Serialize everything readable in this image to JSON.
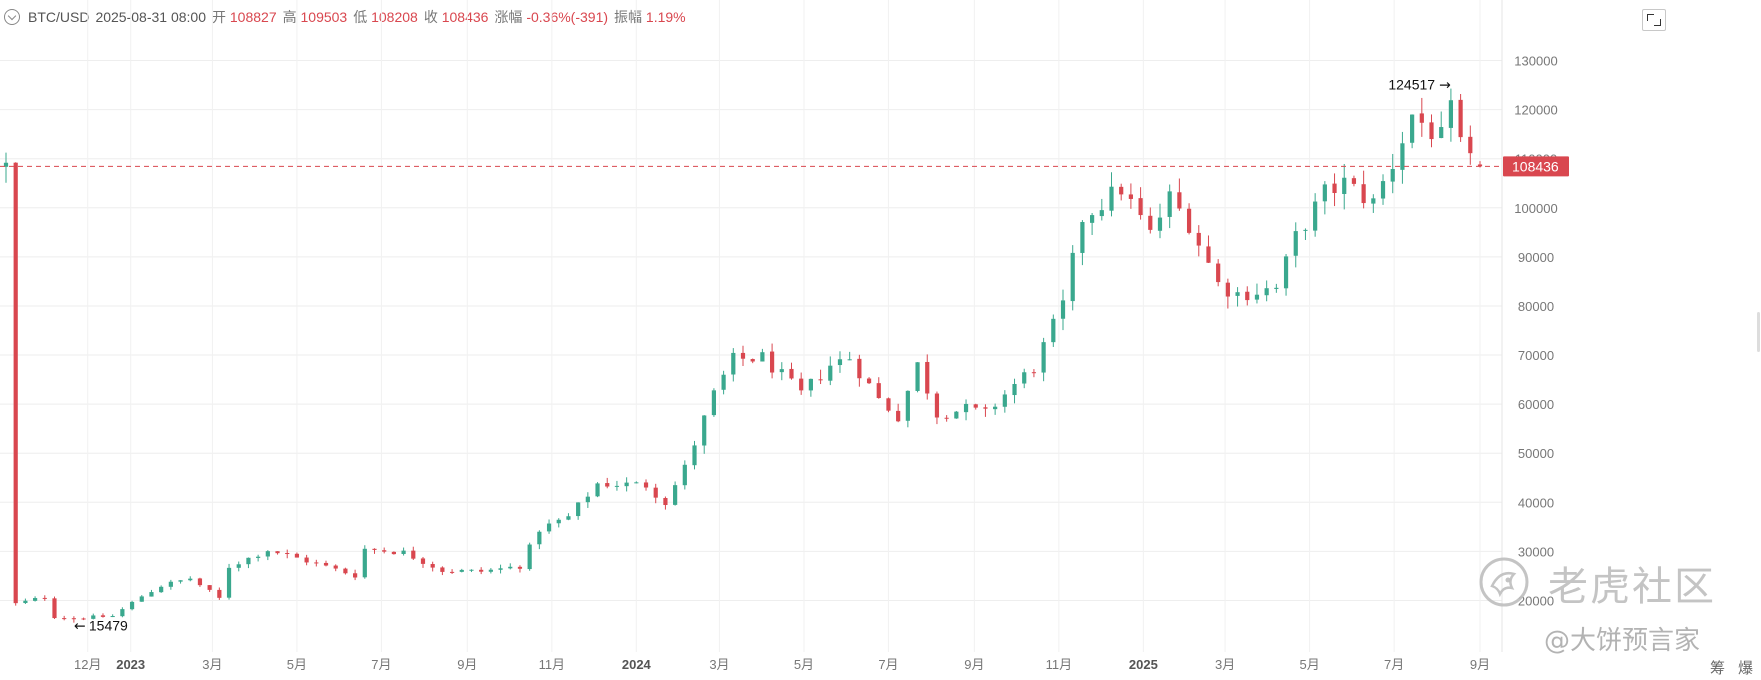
{
  "header": {
    "symbol": "BTC/USD",
    "datetime": "2025-08-31 08:00",
    "open_label": "开",
    "open": "108827",
    "high_label": "高",
    "high": "109503",
    "low_label": "低",
    "low": "108208",
    "close_label": "收",
    "close": "108436",
    "change_label": "涨幅",
    "change": "-0.36%(-391)",
    "amplitude_label": "振幅",
    "amplitude": "1.19%"
  },
  "annotations": {
    "high_marker": "124517",
    "low_marker": "15479",
    "current_price": "108436"
  },
  "bottom_buttons": {
    "chips": "筹",
    "burst": "爆"
  },
  "watermark": {
    "brand": "老虎社区",
    "author": "@大饼预言家"
  },
  "colors": {
    "up": "#3aa88e",
    "down": "#d9474f",
    "grid": "#eeeeee",
    "axis_text": "#777777"
  },
  "chart_data": {
    "type": "candlestick",
    "title": "",
    "interval": "weekly",
    "y_ticks": [
      20000,
      30000,
      40000,
      50000,
      60000,
      70000,
      80000,
      90000,
      100000,
      110000,
      120000,
      130000
    ],
    "y_tick_labels": [
      "20000",
      "30000",
      "40000",
      "50000",
      "60000",
      "70000",
      "80000",
      "90000",
      "100000",
      "110000",
      "120000",
      "130000"
    ],
    "ylim": [
      9500,
      135000
    ],
    "x_ticks": [
      {
        "label": "12月",
        "date": "2022-12-01",
        "bold": false
      },
      {
        "label": "2023",
        "date": "2023-01-01",
        "bold": true
      },
      {
        "label": "3月",
        "date": "2023-03-01",
        "bold": false
      },
      {
        "label": "5月",
        "date": "2023-05-01",
        "bold": false
      },
      {
        "label": "7月",
        "date": "2023-07-01",
        "bold": false
      },
      {
        "label": "9月",
        "date": "2023-09-01",
        "bold": false
      },
      {
        "label": "11月",
        "date": "2023-11-01",
        "bold": false
      },
      {
        "label": "2024",
        "date": "2024-01-01",
        "bold": true
      },
      {
        "label": "3月",
        "date": "2024-03-01",
        "bold": false
      },
      {
        "label": "5月",
        "date": "2024-05-01",
        "bold": false
      },
      {
        "label": "7月",
        "date": "2024-07-01",
        "bold": false
      },
      {
        "label": "9月",
        "date": "2024-09-01",
        "bold": false
      },
      {
        "label": "11月",
        "date": "2024-11-01",
        "bold": false
      },
      {
        "label": "2025",
        "date": "2025-01-01",
        "bold": true
      },
      {
        "label": "3月",
        "date": "2025-03-01",
        "bold": false
      },
      {
        "label": "5月",
        "date": "2025-05-01",
        "bold": false
      },
      {
        "label": "7月",
        "date": "2025-07-01",
        "bold": false
      },
      {
        "label": "9月",
        "date": "2025-09-01",
        "bold": false
      }
    ],
    "last_price": 108436,
    "max_annotation": {
      "date": "2025-08-14",
      "value": 124517,
      "text": "124517"
    },
    "min_annotation": {
      "date": "2022-11-21",
      "value": 15479,
      "text": "15479"
    },
    "anchors": [
      [
        "2022-10-10",
        19300
      ],
      [
        "2022-10-31",
        20700
      ],
      [
        "2022-11-07",
        16700
      ],
      [
        "2022-11-21",
        16400
      ],
      [
        "2022-12-19",
        16800
      ],
      [
        "2023-01-09",
        20900
      ],
      [
        "2023-01-23",
        23000
      ],
      [
        "2023-02-13",
        24500
      ],
      [
        "2023-03-06",
        20400
      ],
      [
        "2023-03-13",
        26900
      ],
      [
        "2023-04-10",
        30300
      ],
      [
        "2023-04-24",
        29200
      ],
      [
        "2023-05-22",
        26900
      ],
      [
        "2023-06-12",
        25100
      ],
      [
        "2023-06-19",
        30500
      ],
      [
        "2023-07-17",
        29800
      ],
      [
        "2023-08-14",
        26100
      ],
      [
        "2023-09-11",
        25900
      ],
      [
        "2023-10-09",
        27000
      ],
      [
        "2023-10-23",
        34500
      ],
      [
        "2023-11-13",
        37000
      ],
      [
        "2023-12-04",
        43800
      ],
      [
        "2024-01-08",
        43500
      ],
      [
        "2024-01-22",
        40000
      ],
      [
        "2024-02-05",
        47000
      ],
      [
        "2024-02-26",
        62000
      ],
      [
        "2024-03-11",
        69000
      ],
      [
        "2024-04-01",
        69500
      ],
      [
        "2024-04-29",
        62000
      ],
      [
        "2024-05-20",
        68000
      ],
      [
        "2024-06-03",
        69500
      ],
      [
        "2024-06-24",
        61000
      ],
      [
        "2024-07-08",
        57500
      ],
      [
        "2024-07-22",
        68000
      ],
      [
        "2024-08-05",
        58000
      ],
      [
        "2024-08-26",
        59000
      ],
      [
        "2024-09-09",
        58000
      ],
      [
        "2024-09-30",
        64000
      ],
      [
        "2024-10-14",
        67500
      ],
      [
        "2024-11-04",
        80000
      ],
      [
        "2024-11-18",
        98000
      ],
      [
        "2024-12-16",
        104000
      ],
      [
        "2025-01-06",
        94500
      ],
      [
        "2025-01-20",
        102000
      ],
      [
        "2025-02-03",
        97000
      ],
      [
        "2025-02-24",
        84500
      ],
      [
        "2025-03-10",
        82500
      ],
      [
        "2025-04-07",
        83500
      ],
      [
        "2025-04-21",
        94000
      ],
      [
        "2025-05-12",
        103000
      ],
      [
        "2025-05-26",
        105000
      ],
      [
        "2025-06-16",
        101000
      ],
      [
        "2025-06-30",
        109000
      ],
      [
        "2025-07-14",
        119000
      ],
      [
        "2025-08-04",
        114000
      ],
      [
        "2025-08-11",
        119500
      ],
      [
        "2025-08-18",
        112500
      ],
      [
        "2025-08-25",
        108900
      ],
      [
        "2025-09-01",
        108436
      ]
    ]
  }
}
